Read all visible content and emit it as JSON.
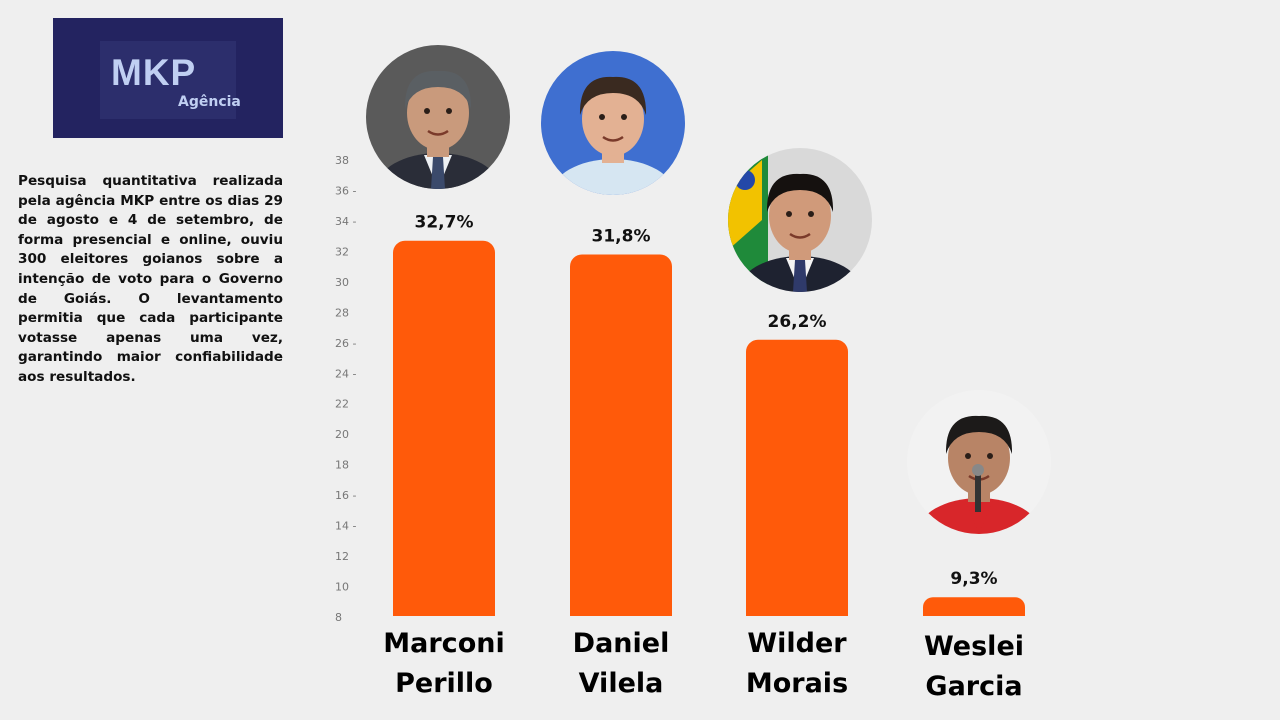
{
  "logo": {
    "main": "MKP",
    "sub": "Agência"
  },
  "description": "Pesquisa quantitativa realizada pela agência MKP entre os dias 29 de agosto e 4 de setembro, de forma presencial e online, ouviu 300 eleitores goianos sobre a intenção de voto para o Governo de Goiás. O levantamento permitia que cada participante votasse apenas uma vez, garantindo maior confiabilidade aos resultados.",
  "colors": {
    "bar": "#ff5a0a",
    "logo_bg": "#232360",
    "logo_text": "#c0cff2"
  },
  "chart_data": {
    "type": "bar",
    "categories": [
      [
        "Marconi",
        "Perillo"
      ],
      [
        "Daniel",
        "Vilela"
      ],
      [
        "Wilder",
        "Morais"
      ],
      [
        "Weslei",
        "Garcia"
      ]
    ],
    "values": [
      32.7,
      31.8,
      26.2,
      9.3
    ],
    "value_labels": [
      "32,7%",
      "31,8%",
      "26,2%",
      "9,3%"
    ],
    "yticks": [
      "38",
      "36 -",
      "34 -",
      "32",
      "30",
      "28",
      "26 -",
      "24 -",
      "22",
      "20",
      "18",
      "16 -",
      "14 -",
      "12",
      "10",
      "8"
    ],
    "ylim": [
      8,
      38
    ],
    "grid": false,
    "photos": [
      "candidate-photo",
      "candidate-photo",
      "candidate-photo",
      "candidate-photo"
    ]
  }
}
